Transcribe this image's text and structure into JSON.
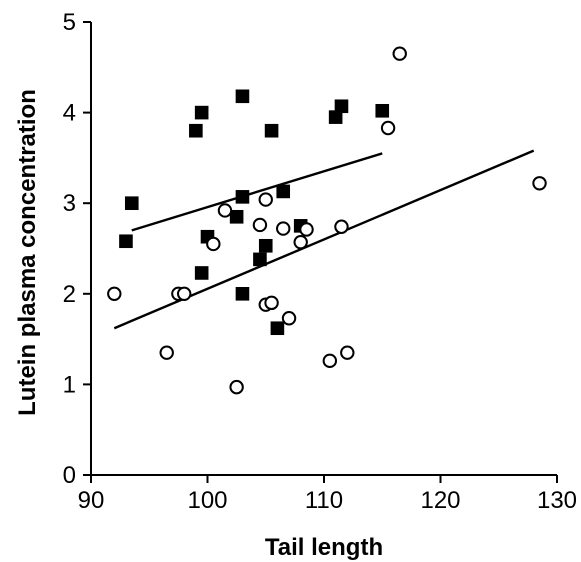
{
  "chart_data": {
    "type": "scatter",
    "title": "",
    "xlabel": "Tail length",
    "ylabel": "Lutein plasma concentration",
    "xlim": [
      90,
      130
    ],
    "ylim": [
      0,
      5
    ],
    "xticks": [
      90,
      100,
      110,
      120,
      130
    ],
    "yticks": [
      0,
      1,
      2,
      3,
      4,
      5
    ],
    "grid": false,
    "legend": "none",
    "series": [
      {
        "marker": "filled-square",
        "color": "#000000",
        "points": [
          {
            "x": 93.0,
            "y": 2.58
          },
          {
            "x": 93.5,
            "y": 3.0
          },
          {
            "x": 99.0,
            "y": 3.8
          },
          {
            "x": 99.5,
            "y": 4.0
          },
          {
            "x": 99.5,
            "y": 2.23
          },
          {
            "x": 100.0,
            "y": 2.63
          },
          {
            "x": 102.5,
            "y": 2.85
          },
          {
            "x": 103.0,
            "y": 4.18
          },
          {
            "x": 103.0,
            "y": 3.07
          },
          {
            "x": 103.0,
            "y": 2.0
          },
          {
            "x": 104.5,
            "y": 2.38
          },
          {
            "x": 105.0,
            "y": 2.53
          },
          {
            "x": 105.5,
            "y": 3.8
          },
          {
            "x": 106.0,
            "y": 1.62
          },
          {
            "x": 106.5,
            "y": 3.13
          },
          {
            "x": 108.0,
            "y": 2.75
          },
          {
            "x": 111.0,
            "y": 3.95
          },
          {
            "x": 111.5,
            "y": 4.07
          },
          {
            "x": 115.0,
            "y": 4.02
          }
        ],
        "fit_line": {
          "x": [
            93.5,
            115.0
          ],
          "y": [
            2.7,
            3.55
          ]
        }
      },
      {
        "marker": "open-circle",
        "color": "#000000",
        "points": [
          {
            "x": 92.0,
            "y": 2.0
          },
          {
            "x": 96.5,
            "y": 1.35
          },
          {
            "x": 97.5,
            "y": 2.0
          },
          {
            "x": 98.0,
            "y": 2.0
          },
          {
            "x": 100.5,
            "y": 2.55
          },
          {
            "x": 101.5,
            "y": 2.92
          },
          {
            "x": 102.5,
            "y": 0.97
          },
          {
            "x": 104.5,
            "y": 2.76
          },
          {
            "x": 105.0,
            "y": 3.04
          },
          {
            "x": 105.0,
            "y": 1.88
          },
          {
            "x": 105.5,
            "y": 1.9
          },
          {
            "x": 106.5,
            "y": 2.72
          },
          {
            "x": 107.0,
            "y": 1.73
          },
          {
            "x": 108.0,
            "y": 2.57
          },
          {
            "x": 108.5,
            "y": 2.71
          },
          {
            "x": 110.5,
            "y": 1.26
          },
          {
            "x": 111.5,
            "y": 2.74
          },
          {
            "x": 112.0,
            "y": 1.35
          },
          {
            "x": 115.5,
            "y": 3.83
          },
          {
            "x": 116.5,
            "y": 4.65
          },
          {
            "x": 128.5,
            "y": 3.22
          }
        ],
        "fit_line": {
          "x": [
            92.0,
            128.0
          ],
          "y": [
            1.62,
            3.58
          ]
        }
      }
    ]
  }
}
